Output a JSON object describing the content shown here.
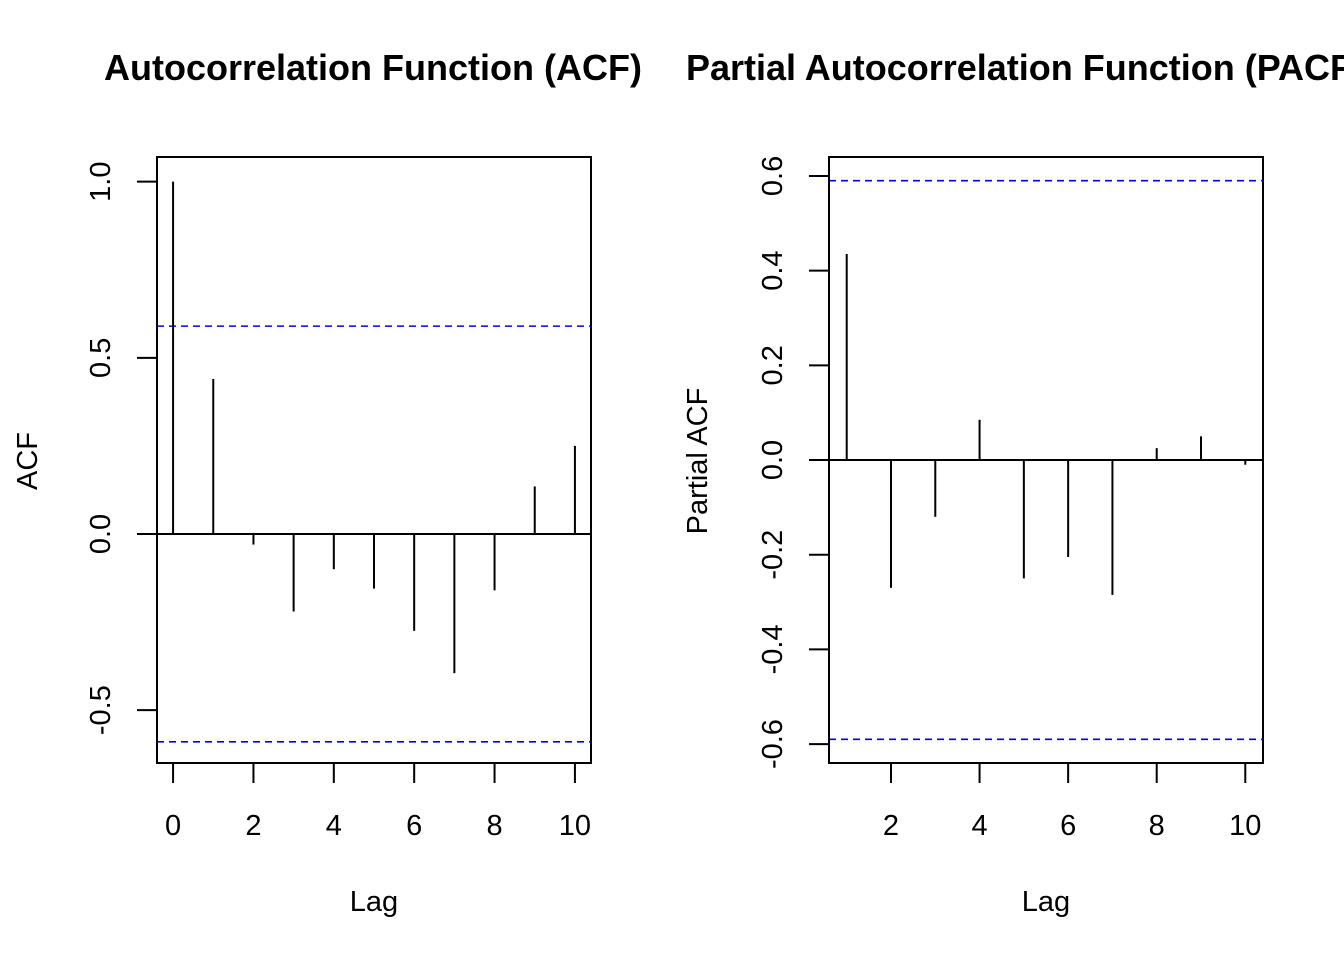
{
  "chart_data": [
    {
      "type": "bar",
      "title": "Autocorrelation Function (ACF)",
      "xlabel": "Lag",
      "ylabel": "ACF",
      "xlim": [
        -0.4,
        10.4
      ],
      "ylim": [
        -0.65,
        1.07
      ],
      "xticks": [
        0,
        2,
        4,
        6,
        8,
        10
      ],
      "xtick_labels": [
        "0",
        "2",
        "4",
        "6",
        "8",
        "10"
      ],
      "yticks": [
        -0.5,
        0.0,
        0.5,
        1.0
      ],
      "ytick_labels": [
        "-0.5",
        "0.0",
        "0.5",
        "1.0"
      ],
      "x": [
        0,
        1,
        2,
        3,
        4,
        5,
        6,
        7,
        8,
        9,
        10
      ],
      "values": [
        1.0,
        0.44,
        -0.03,
        -0.22,
        -0.1,
        -0.155,
        -0.275,
        -0.395,
        -0.16,
        0.135,
        0.25
      ],
      "confidence_bound": 0.59,
      "colors": {
        "bound": "#0000ff",
        "stem": "#000000"
      },
      "grid": false
    },
    {
      "type": "bar",
      "title": "Partial Autocorrelation Function (PACF)",
      "xlabel": "Lag",
      "ylabel": "Partial ACF",
      "xlim": [
        0.6,
        10.4
      ],
      "ylim": [
        -0.64,
        0.64
      ],
      "xticks": [
        2,
        4,
        6,
        8,
        10
      ],
      "xtick_labels": [
        "2",
        "4",
        "6",
        "8",
        "10"
      ],
      "yticks": [
        -0.6,
        -0.4,
        -0.2,
        0.0,
        0.2,
        0.4,
        0.6
      ],
      "ytick_labels": [
        "-0.6",
        "-0.4",
        "-0.2",
        "0.0",
        "0.2",
        "0.4",
        "0.6"
      ],
      "x": [
        1,
        2,
        3,
        4,
        5,
        6,
        7,
        8,
        9,
        10
      ],
      "values": [
        0.435,
        -0.27,
        -0.12,
        0.085,
        -0.25,
        -0.205,
        -0.285,
        0.025,
        0.05,
        -0.01
      ],
      "confidence_bound": 0.59,
      "colors": {
        "bound": "#0000ff",
        "stem": "#000000"
      },
      "grid": false
    }
  ]
}
